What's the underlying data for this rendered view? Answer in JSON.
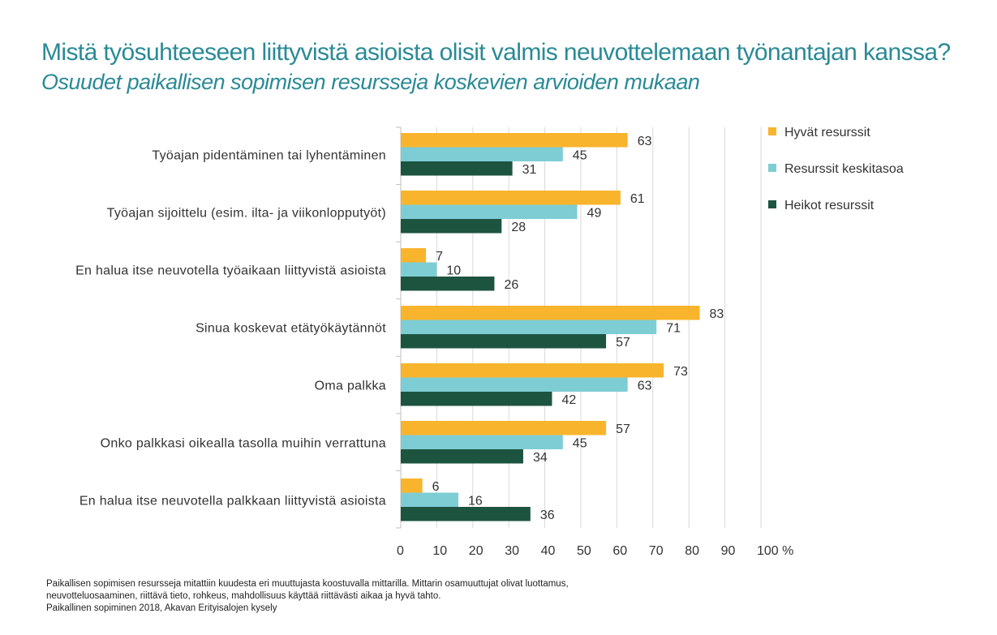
{
  "title": "Mistä työsuhteeseen liittyvistä asioista olisit valmis neuvottelemaan työnantajan kanssa?",
  "subtitle": "Osuudet paikallisen sopimisen resursseja koskevien arvioiden mukaan",
  "chart_data": {
    "type": "bar",
    "orientation": "horizontal",
    "categories": [
      "Työajan pidentäminen tai lyhentäminen",
      "Työajan sijoittelu (esim. ilta- ja viikonlopputyöt)",
      "En halua itse neuvotella työaikaan liittyvistä asioista",
      "Sinua koskevat etätyökäytännöt",
      "Oma palkka",
      "Onko palkkasi oikealla tasolla muihin verrattuna",
      "En halua itse neuvotella palkkaan liittyvistä asioista"
    ],
    "series": [
      {
        "name": "Hyvät resurssit",
        "color": "#f9b42d",
        "values": [
          63,
          61,
          7,
          83,
          73,
          57,
          6
        ]
      },
      {
        "name": "Resurssit keskitasoa",
        "color": "#7ecdd4",
        "values": [
          45,
          49,
          10,
          71,
          63,
          45,
          16
        ]
      },
      {
        "name": "Heikot resurssit",
        "color": "#1d5440",
        "values": [
          31,
          28,
          26,
          57,
          42,
          34,
          36
        ]
      }
    ],
    "xlim": [
      0,
      100
    ],
    "xticks": [
      "0",
      "10",
      "20",
      "30",
      "40",
      "50",
      "60",
      "70",
      "80",
      "90",
      "100 %"
    ],
    "grid": true,
    "legend": "top-right"
  },
  "footnote": [
    "Paikallisen sopimisen resursseja mitattiin kuudesta eri muuttujasta koostuvalla mittarilla. Mittarin osamuuttujat olivat luottamus,",
    "neuvotteluosaaminen, riittävä tieto, rohkeus, mahdollisuus käyttää riittävästi aikaa ja hyvä tahto.",
    "Paikallinen sopiminen 2018, Akavan Erityisalojen kysely"
  ]
}
